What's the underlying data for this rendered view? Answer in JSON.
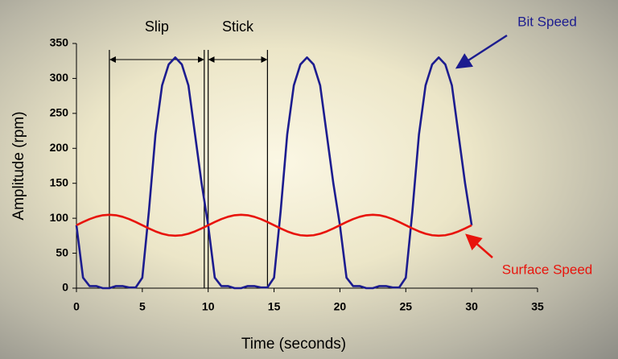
{
  "chart_data": {
    "type": "line",
    "xlabel": "Time (seconds)",
    "ylabel": "Amplitude (rpm)",
    "x": [
      0,
      0.5,
      1,
      1.5,
      2,
      2.5,
      3,
      3.5,
      4,
      4.5,
      5,
      5.5,
      6,
      6.5,
      7,
      7.5,
      8,
      8.5,
      9,
      9.5,
      10,
      10.5,
      11,
      11.5,
      12,
      12.5,
      13,
      13.5,
      14,
      14.5,
      15,
      15.5,
      16,
      16.5,
      17,
      17.5,
      18,
      18.5,
      19,
      19.5,
      20,
      20.5,
      21,
      21.5,
      22,
      22.5,
      23,
      23.5,
      24,
      24.5,
      25,
      25.5,
      26,
      26.5,
      27,
      27.5,
      28,
      28.5,
      29,
      29.5,
      30
    ],
    "series": [
      {
        "name": "Bit Speed",
        "color": "#1c1c8f",
        "values": [
          90,
          15,
          3,
          3,
          0,
          0,
          3,
          3,
          1,
          1,
          15,
          110,
          220,
          290,
          320,
          330,
          320,
          290,
          220,
          150,
          90,
          15,
          3,
          3,
          0,
          0,
          3,
          3,
          1,
          1,
          15,
          110,
          220,
          290,
          320,
          330,
          320,
          290,
          220,
          150,
          90,
          15,
          3,
          3,
          0,
          0,
          3,
          3,
          1,
          1,
          15,
          110,
          220,
          290,
          320,
          330,
          320,
          290,
          220,
          150,
          90
        ]
      },
      {
        "name": "Surface Speed",
        "color": "#e8140c",
        "values": [
          90,
          94.6,
          98.8,
          102.1,
          104.3,
          105,
          104.3,
          102.1,
          98.8,
          94.6,
          90,
          85.4,
          81.2,
          77.9,
          75.7,
          75,
          75.7,
          77.9,
          81.2,
          85.4,
          90,
          94.6,
          98.8,
          102.1,
          104.3,
          105,
          104.3,
          102.1,
          98.8,
          94.6,
          90,
          85.4,
          81.2,
          77.9,
          75.7,
          75,
          75.7,
          77.9,
          81.2,
          85.4,
          90,
          94.6,
          98.8,
          102.1,
          104.3,
          105,
          104.3,
          102.1,
          98.8,
          94.6,
          90,
          85.4,
          81.2,
          77.9,
          75.7,
          75,
          75.7,
          77.9,
          81.2,
          85.4,
          90
        ]
      }
    ],
    "annotations": [
      {
        "text": "Slip",
        "x0": 2.5,
        "x1": 9.7
      },
      {
        "text": "Stick",
        "x0": 10,
        "x1": 14.5
      }
    ],
    "xlim": [
      0,
      35
    ],
    "xticks": [
      0,
      5,
      10,
      15,
      20,
      25,
      30,
      35
    ],
    "ylim": [
      0,
      350
    ],
    "yticks": [
      0,
      50,
      100,
      150,
      200,
      250,
      300,
      350
    ]
  }
}
